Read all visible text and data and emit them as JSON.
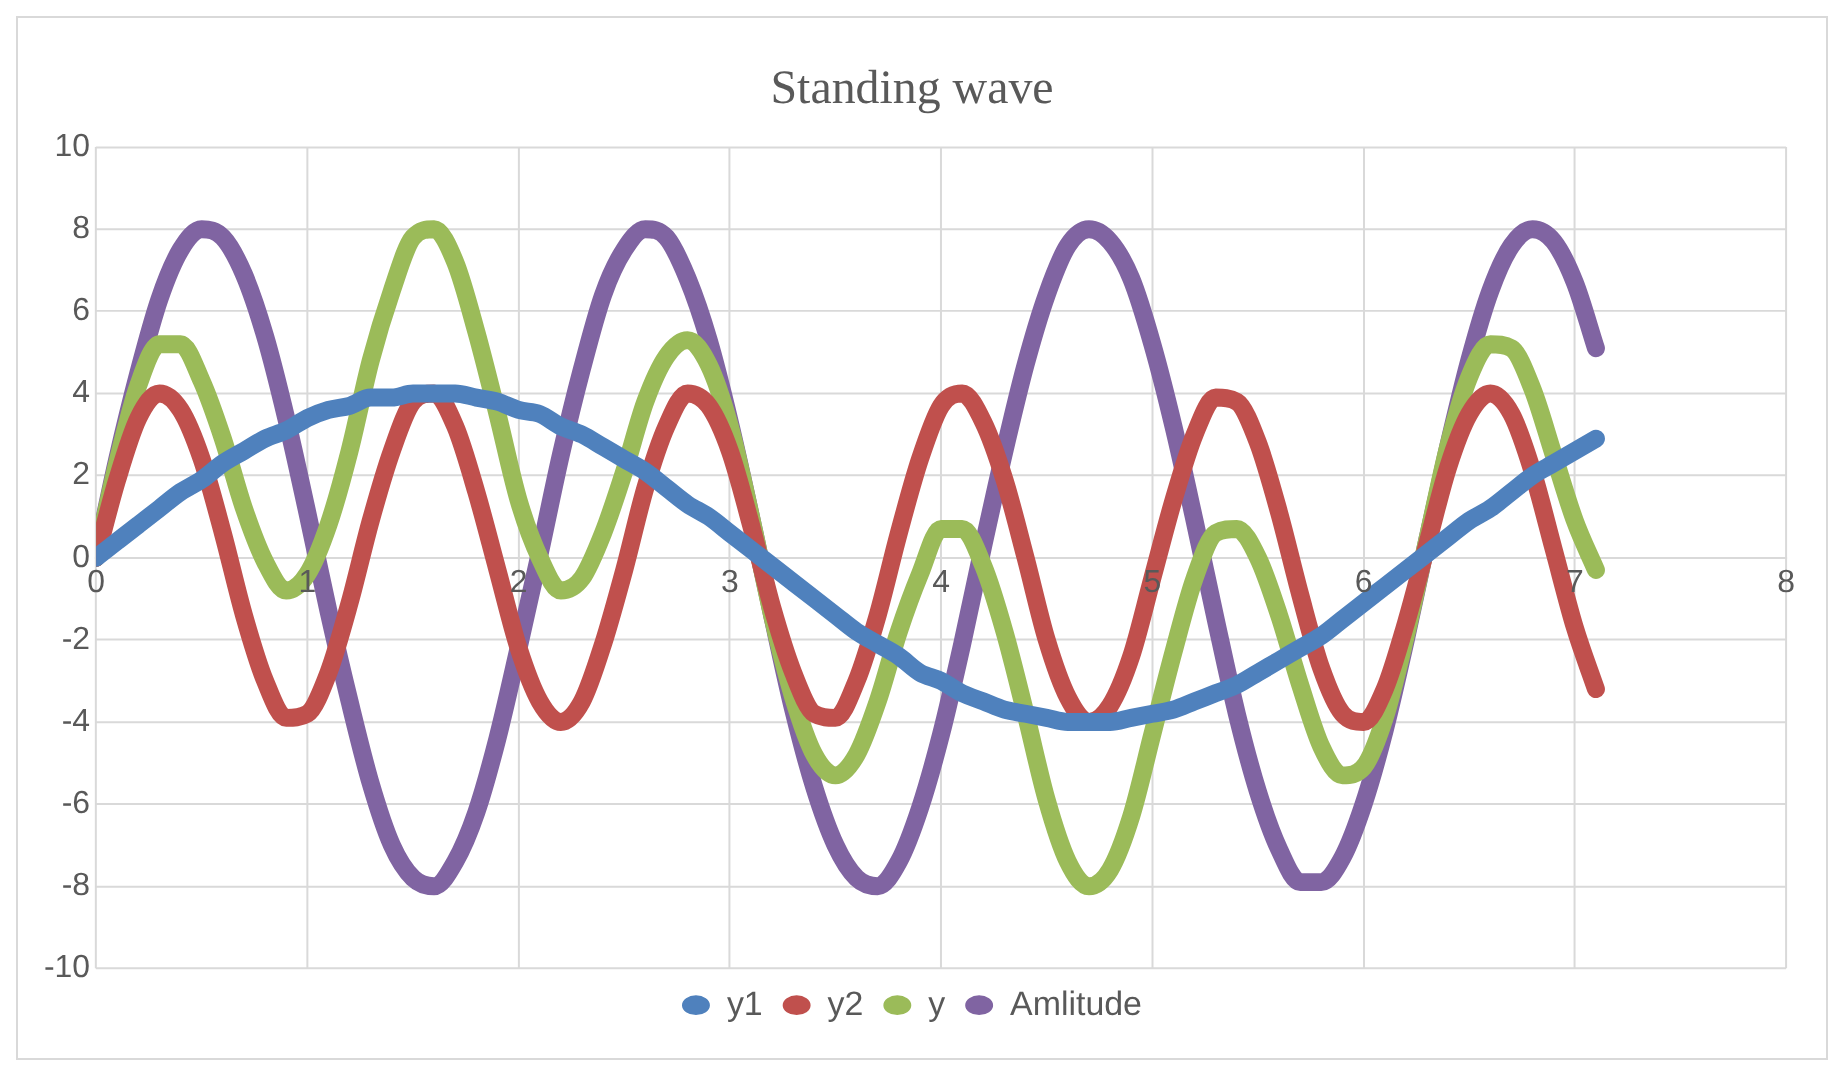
{
  "chart_data": {
    "type": "line",
    "title": "Standing wave",
    "legend": "bottom",
    "grid": true,
    "marker": "none",
    "line_style": "solid",
    "x": [
      0,
      0.1,
      0.2,
      0.3,
      0.4,
      0.5,
      0.6,
      0.7,
      0.8,
      0.9,
      1,
      1.1,
      1.2,
      1.3,
      1.4,
      1.5,
      1.6,
      1.7,
      1.8,
      1.9,
      2,
      2.1,
      2.2,
      2.3,
      2.4,
      2.5,
      2.6,
      2.7,
      2.8,
      2.9,
      3,
      3.1,
      3.2,
      3.3,
      3.4,
      3.5,
      3.6,
      3.7,
      3.8,
      3.9,
      4,
      4.1,
      4.2,
      4.3,
      4.4,
      4.5,
      4.6,
      4.7,
      4.8,
      4.9,
      5,
      5.1,
      5.2,
      5.3,
      5.4,
      5.5,
      5.6,
      5.7,
      5.8,
      5.9,
      6,
      6.1,
      6.2,
      6.3,
      6.4,
      6.5,
      6.6,
      6.7,
      6.8,
      6.9,
      7,
      7.1
    ],
    "xlim": [
      0,
      8
    ],
    "xticks": [
      0,
      1,
      2,
      3,
      4,
      5,
      6,
      7,
      8
    ],
    "ylim": [
      -10,
      10
    ],
    "yticks": [
      -10,
      -8,
      -6,
      -4,
      -2,
      0,
      2,
      4,
      6,
      8,
      10
    ],
    "series": [
      {
        "name": "y1",
        "color": "#4f81bd",
        "values": [
          0,
          0.4,
          0.8,
          1.2,
          1.6,
          1.9,
          2.3,
          2.6,
          2.9,
          3.1,
          3.4,
          3.6,
          3.7,
          3.9,
          3.9,
          4.0,
          4.0,
          4.0,
          3.9,
          3.8,
          3.6,
          3.5,
          3.2,
          3.0,
          2.7,
          2.4,
          2.1,
          1.7,
          1.3,
          1.0,
          0.6,
          0.2,
          -0.2,
          -0.6,
          -1.0,
          -1.4,
          -1.8,
          -2.1,
          -2.4,
          -2.8,
          -3.0,
          -3.3,
          -3.5,
          -3.7,
          -3.8,
          -3.9,
          -4.0,
          -4.0,
          -4.0,
          -3.9,
          -3.8,
          -3.7,
          -3.5,
          -3.3,
          -3.1,
          -2.8,
          -2.5,
          -2.2,
          -1.9,
          -1.5,
          -1.1,
          -0.7,
          -0.3,
          0.1,
          0.5,
          0.9,
          1.2,
          1.6,
          2.0,
          2.3,
          2.6,
          2.9
        ]
      },
      {
        "name": "y2",
        "color": "#c0504d",
        "values": [
          0,
          1.9,
          3.4,
          4.0,
          3.6,
          2.4,
          0.6,
          -1.4,
          -3.0,
          -3.9,
          -3.8,
          -2.8,
          -1.1,
          0.9,
          2.6,
          3.8,
          4.0,
          3.2,
          1.6,
          -0.3,
          -2.2,
          -3.5,
          -4.0,
          -3.5,
          -2.1,
          -0.3,
          1.7,
          3.2,
          4.0,
          3.7,
          2.6,
          0.8,
          -1.2,
          -2.8,
          -3.8,
          -3.9,
          -3.0,
          -1.4,
          0.6,
          2.4,
          3.7,
          4.0,
          3.3,
          1.9,
          0.0,
          -2.0,
          -3.4,
          -4.0,
          -3.6,
          -2.4,
          -0.5,
          1.4,
          3.0,
          3.9,
          3.8,
          2.8,
          1.1,
          -0.9,
          -2.7,
          -3.8,
          -4.0,
          -3.2,
          -1.6,
          0.3,
          2.2,
          3.5,
          4.0,
          3.5,
          2.1,
          0.2,
          -1.7,
          -3.2
        ]
      },
      {
        "name": "y",
        "color": "#9bbb59",
        "values": [
          0,
          2.3,
          4.2,
          5.2,
          5.2,
          4.3,
          2.9,
          1.2,
          -0.1,
          -0.8,
          -0.4,
          0.8,
          2.6,
          4.8,
          6.5,
          7.8,
          8.0,
          7.2,
          5.5,
          3.5,
          1.4,
          0,
          -0.8,
          -0.5,
          0.6,
          2.1,
          3.8,
          4.9,
          5.3,
          4.7,
          3.2,
          1.0,
          -1.4,
          -3.4,
          -4.8,
          -5.3,
          -4.8,
          -3.5,
          -1.8,
          -0.4,
          0.7,
          0.7,
          -0.2,
          -1.8,
          -3.8,
          -5.9,
          -7.4,
          -8.0,
          -7.6,
          -6.3,
          -4.3,
          -2.3,
          -0.5,
          0.6,
          0.7,
          0,
          -1.4,
          -3.1,
          -4.6,
          -5.3,
          -5.1,
          -3.9,
          -1.9,
          0.4,
          2.7,
          4.4,
          5.2,
          5.1,
          4.1,
          2.5,
          0.9,
          -0.3
        ]
      },
      {
        "name": "Amlitude",
        "color": "#8064a2",
        "values": [
          0,
          2.4,
          4.5,
          6.3,
          7.5,
          8.0,
          7.8,
          6.9,
          5.4,
          3.4,
          1.1,
          -1.3,
          -3.5,
          -5.5,
          -7.0,
          -7.8,
          -8.0,
          -7.4,
          -6.2,
          -4.4,
          -2.2,
          0.1,
          2.5,
          4.6,
          6.4,
          7.5,
          8.0,
          7.8,
          6.8,
          5.3,
          3.3,
          1.0,
          -1.4,
          -3.7,
          -5.6,
          -7.0,
          -7.8,
          -8.0,
          -7.4,
          -6.1,
          -4.3,
          -2.1,
          0.3,
          2.6,
          4.7,
          6.4,
          7.6,
          8.0,
          7.7,
          6.8,
          5.2,
          3.2,
          0.9,
          -1.5,
          -3.8,
          -5.7,
          -7.1,
          -7.9,
          -7.9,
          -7.3,
          -6.0,
          -4.2,
          -2.0,
          0.4,
          2.7,
          4.8,
          6.5,
          7.6,
          8.0,
          7.7,
          6.7,
          5.1
        ]
      }
    ]
  }
}
